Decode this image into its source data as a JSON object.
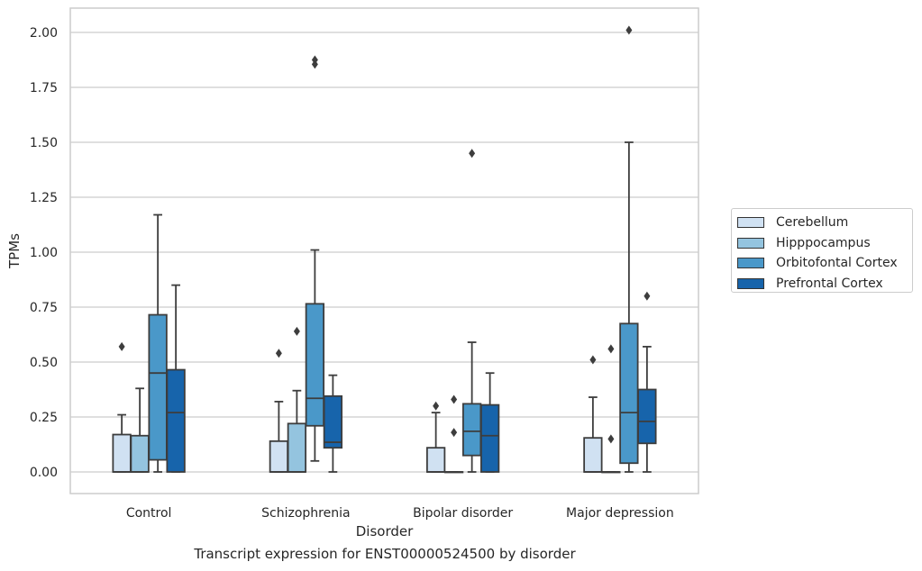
{
  "chart_data": {
    "type": "box",
    "xlabel": "Disorder",
    "ylabel": "TPMs",
    "caption": "Transcript expression for ENST00000524500 by disorder",
    "ylim": [
      -0.1,
      2.12
    ],
    "yticks": [
      0.0,
      0.25,
      0.5,
      0.75,
      1.0,
      1.25,
      1.5,
      1.75,
      2.0
    ],
    "ytick_labels": [
      "0.00",
      "0.25",
      "0.50",
      "0.75",
      "1.00",
      "1.25",
      "1.50",
      "1.75",
      "2.00"
    ],
    "grid": "horizontal",
    "legend_position": "right",
    "categories": [
      "Control",
      "Schizophrenia",
      "Bipolar disorder",
      "Major depression"
    ],
    "series": [
      {
        "name": "Cerebellum",
        "color": "#d0e1f2",
        "boxes": [
          {
            "q1": 0.0,
            "median": 0.0,
            "q3": 0.17,
            "whisker_low": 0.0,
            "whisker_high": 0.26,
            "outliers": [
              0.57
            ]
          },
          {
            "q1": 0.0,
            "median": 0.0,
            "q3": 0.14,
            "whisker_low": 0.0,
            "whisker_high": 0.32,
            "outliers": [
              0.54
            ]
          },
          {
            "q1": 0.0,
            "median": 0.0,
            "q3": 0.11,
            "whisker_low": 0.0,
            "whisker_high": 0.27,
            "outliers": [
              0.3
            ]
          },
          {
            "q1": 0.0,
            "median": 0.0,
            "q3": 0.155,
            "whisker_low": 0.0,
            "whisker_high": 0.34,
            "outliers": [
              0.51
            ]
          }
        ]
      },
      {
        "name": "Hipppocampus",
        "color": "#94c4df",
        "boxes": [
          {
            "q1": 0.0,
            "median": 0.0,
            "q3": 0.165,
            "whisker_low": 0.0,
            "whisker_high": 0.38,
            "outliers": []
          },
          {
            "q1": 0.0,
            "median": 0.0,
            "q3": 0.22,
            "whisker_low": 0.0,
            "whisker_high": 0.37,
            "outliers": [
              0.64
            ]
          },
          {
            "q1": 0.0,
            "median": 0.0,
            "q3": 0.0,
            "whisker_low": 0.0,
            "whisker_high": 0.0,
            "outliers": [
              0.18,
              0.33
            ]
          },
          {
            "q1": 0.0,
            "median": 0.0,
            "q3": 0.0,
            "whisker_low": 0.0,
            "whisker_high": 0.0,
            "outliers": [
              0.15,
              0.56
            ]
          }
        ]
      },
      {
        "name": "Orbitofontal Cortex",
        "color": "#4a98c9",
        "boxes": [
          {
            "q1": 0.055,
            "median": 0.45,
            "q3": 0.715,
            "whisker_low": 0.0,
            "whisker_high": 1.17,
            "outliers": []
          },
          {
            "q1": 0.21,
            "median": 0.335,
            "q3": 0.765,
            "whisker_low": 0.05,
            "whisker_high": 1.01,
            "outliers": [
              1.855,
              1.875
            ]
          },
          {
            "q1": 0.075,
            "median": 0.185,
            "q3": 0.31,
            "whisker_low": 0.0,
            "whisker_high": 0.59,
            "outliers": [
              1.45
            ]
          },
          {
            "q1": 0.04,
            "median": 0.27,
            "q3": 0.675,
            "whisker_low": 0.0,
            "whisker_high": 1.5,
            "outliers": [
              2.01
            ]
          }
        ]
      },
      {
        "name": "Prefrontal Cortex",
        "color": "#1764ab",
        "boxes": [
          {
            "q1": 0.0,
            "median": 0.27,
            "q3": 0.465,
            "whisker_low": 0.0,
            "whisker_high": 0.85,
            "outliers": []
          },
          {
            "q1": 0.11,
            "median": 0.135,
            "q3": 0.345,
            "whisker_low": 0.0,
            "whisker_high": 0.44,
            "outliers": []
          },
          {
            "q1": 0.0,
            "median": 0.165,
            "q3": 0.305,
            "whisker_low": 0.0,
            "whisker_high": 0.45,
            "outliers": []
          },
          {
            "q1": 0.13,
            "median": 0.23,
            "q3": 0.375,
            "whisker_low": 0.0,
            "whisker_high": 0.57,
            "outliers": [
              0.8
            ]
          }
        ]
      }
    ]
  }
}
